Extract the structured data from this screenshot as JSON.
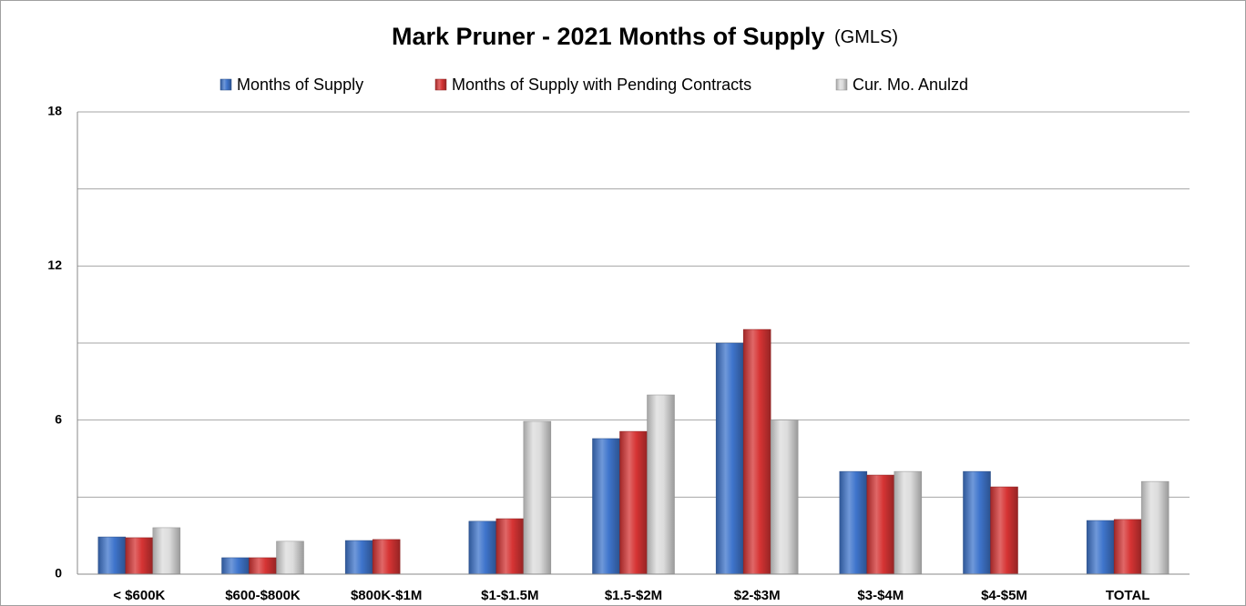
{
  "chart_data": {
    "type": "bar",
    "title": "Mark Pruner - 2021 Months of Supply",
    "subtitle": "(GMLS)",
    "categories": [
      "< $600K",
      "$600-$800K",
      "$800K-$1M",
      "$1-$1.5M",
      "$1.5-$2M",
      "$2-$3M",
      "$3-$4M",
      "$4-$5M",
      "TOTAL"
    ],
    "series": [
      {
        "name": "Months of Supply",
        "color": "#3f75cc",
        "values": [
          1.45,
          0.64,
          1.31,
          2.06,
          5.28,
          9.0,
          4.0,
          4.0,
          2.09
        ]
      },
      {
        "name": "Months of Supply with Pending Contracts",
        "color": "#d63434",
        "values": [
          1.42,
          0.64,
          1.35,
          2.16,
          5.56,
          9.53,
          3.86,
          3.4,
          2.13
        ]
      },
      {
        "name": "Cur. Mo. Anulzd",
        "color": "#dcdcdc",
        "values": [
          1.81,
          1.28,
          null,
          5.95,
          6.98,
          6.0,
          4.0,
          null,
          3.61
        ]
      }
    ],
    "ylim": [
      0,
      18
    ],
    "yticks": [
      0,
      6,
      12,
      18
    ],
    "minor_yticks": [
      3,
      9,
      15
    ],
    "grid": true
  }
}
